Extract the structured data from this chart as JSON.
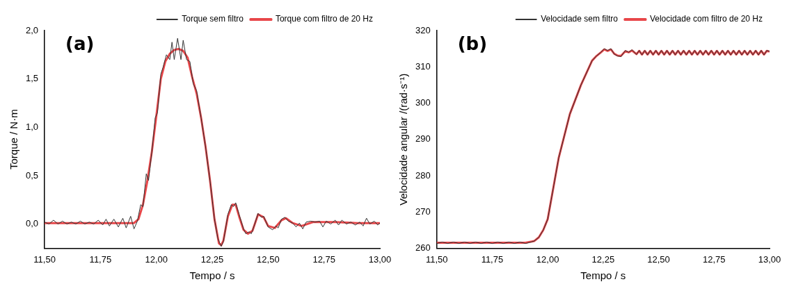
{
  "chart_data": [
    {
      "type": "line",
      "annotations": [
        "(a)"
      ],
      "xlabel": "Tempo / s",
      "ylabel": "Torque / N·m",
      "xlim": [
        11.5,
        13.0
      ],
      "ylim": [
        -0.25,
        2.0
      ],
      "xticks": [
        {
          "value": 11.5,
          "label": "11,50"
        },
        {
          "value": 11.75,
          "label": "11,75"
        },
        {
          "value": 12.0,
          "label": "12,00"
        },
        {
          "value": 12.25,
          "label": "12,25"
        },
        {
          "value": 12.5,
          "label": "12,50"
        },
        {
          "value": 12.75,
          "label": "12,75"
        },
        {
          "value": 13.0,
          "label": "13,00"
        }
      ],
      "yticks": [
        {
          "value": 0,
          "label": "0,0"
        },
        {
          "value": 0.5,
          "label": "0,5"
        },
        {
          "value": 1.0,
          "label": "1,0"
        },
        {
          "value": 1.5,
          "label": "1,5"
        },
        {
          "value": 2.0,
          "label": "2,0"
        }
      ],
      "grid": false,
      "legend": "top right",
      "series": [
        {
          "name": "Torque sem filtro",
          "color": "#333333",
          "x": [
            11.5,
            11.52,
            11.54,
            11.56,
            11.58,
            11.6,
            11.62,
            11.64,
            11.66,
            11.68,
            11.7,
            11.72,
            11.74,
            11.76,
            11.775,
            11.79,
            11.81,
            11.83,
            11.85,
            11.865,
            11.885,
            11.9,
            11.915,
            11.93,
            11.94,
            11.955,
            11.965,
            11.98,
            11.995,
            12.005,
            12.02,
            12.03,
            12.045,
            12.06,
            12.07,
            12.08,
            12.095,
            12.11,
            12.12,
            12.135,
            12.15,
            12.165,
            12.18,
            12.2,
            12.22,
            12.24,
            12.26,
            12.275,
            12.29,
            12.3,
            12.32,
            12.335,
            12.345,
            12.355,
            12.37,
            12.39,
            12.4,
            12.415,
            12.425,
            12.44,
            12.455,
            12.47,
            12.48,
            12.5,
            12.52,
            12.535,
            12.545,
            12.56,
            12.575,
            12.59,
            12.61,
            12.625,
            12.64,
            12.655,
            12.67,
            12.69,
            12.71,
            12.73,
            12.745,
            12.76,
            12.78,
            12.8,
            12.815,
            12.83,
            12.85,
            12.87,
            12.89,
            12.91,
            12.925,
            12.94,
            12.955,
            12.975,
            12.99,
            13.0
          ],
          "values": [
            0.02,
            0.0,
            0.04,
            0.0,
            0.03,
            0.0,
            0.02,
            0.0,
            0.03,
            0.0,
            0.02,
            0.0,
            0.04,
            -0.01,
            0.05,
            -0.02,
            0.05,
            -0.03,
            0.06,
            -0.04,
            0.08,
            -0.05,
            0.03,
            0.2,
            0.18,
            0.52,
            0.45,
            0.75,
            1.1,
            1.15,
            1.55,
            1.62,
            1.75,
            1.7,
            1.88,
            1.7,
            1.92,
            1.7,
            1.9,
            1.7,
            1.68,
            1.45,
            1.38,
            1.1,
            0.8,
            0.45,
            0.05,
            -0.15,
            -0.23,
            -0.18,
            0.1,
            0.2,
            0.18,
            0.22,
            0.1,
            -0.05,
            -0.1,
            -0.08,
            -0.1,
            0.0,
            0.11,
            0.07,
            0.08,
            -0.03,
            -0.06,
            -0.02,
            -0.04,
            0.05,
            0.07,
            0.03,
            0.01,
            -0.03,
            0.01,
            -0.05,
            0.02,
            0.03,
            0.02,
            0.03,
            -0.03,
            0.03,
            0.0,
            0.04,
            -0.01,
            0.04,
            0.0,
            0.02,
            -0.01,
            0.02,
            -0.02,
            0.06,
            0.0,
            0.03,
            -0.01,
            0.01
          ]
        },
        {
          "name": "Torque com filtro de 20 Hz",
          "color": "#e8474a",
          "x": [
            11.5,
            11.6,
            11.7,
            11.8,
            11.9,
            11.92,
            11.94,
            11.96,
            11.98,
            12.0,
            12.02,
            12.04,
            12.06,
            12.08,
            12.1,
            12.12,
            12.14,
            12.16,
            12.18,
            12.2,
            12.22,
            12.24,
            12.26,
            12.28,
            12.29,
            12.3,
            12.32,
            12.34,
            12.355,
            12.37,
            12.39,
            12.41,
            12.43,
            12.455,
            12.48,
            12.5,
            12.53,
            12.56,
            12.58,
            12.61,
            12.65,
            12.7,
            12.8,
            12.9,
            13.0
          ],
          "values": [
            0.01,
            0.01,
            0.01,
            0.01,
            0.01,
            0.05,
            0.2,
            0.45,
            0.75,
            1.12,
            1.5,
            1.68,
            1.76,
            1.8,
            1.81,
            1.79,
            1.72,
            1.52,
            1.35,
            1.1,
            0.8,
            0.45,
            0.05,
            -0.2,
            -0.22,
            -0.17,
            0.08,
            0.2,
            0.2,
            0.08,
            -0.06,
            -0.1,
            -0.07,
            0.1,
            0.07,
            -0.02,
            -0.04,
            0.04,
            0.06,
            0.01,
            -0.02,
            0.02,
            0.02,
            0.01,
            0.01
          ]
        }
      ]
    },
    {
      "type": "line",
      "annotations": [
        "(b)"
      ],
      "xlabel": "Tempo / s",
      "ylabel": "Velocidade angular /(rad·s⁻¹)",
      "xlim": [
        11.5,
        13.0
      ],
      "ylim": [
        260,
        320
      ],
      "xticks": [
        {
          "value": 11.5,
          "label": "11,50"
        },
        {
          "value": 11.75,
          "label": "11,75"
        },
        {
          "value": 12.0,
          "label": "12,00"
        },
        {
          "value": 12.25,
          "label": "12,25"
        },
        {
          "value": 12.5,
          "label": "12,50"
        },
        {
          "value": 12.75,
          "label": "12,75"
        },
        {
          "value": 13.0,
          "label": "13,00"
        }
      ],
      "yticks": [
        260,
        270,
        280,
        290,
        300,
        310,
        320
      ],
      "grid": false,
      "legend": "top right",
      "series": [
        {
          "name": "Velocidade sem filtro",
          "color": "#333333",
          "x": [
            11.5,
            11.525,
            11.55,
            11.575,
            11.6,
            11.625,
            11.65,
            11.675,
            11.7,
            11.725,
            11.75,
            11.775,
            11.8,
            11.825,
            11.85,
            11.875,
            11.9,
            11.925,
            11.94,
            11.96,
            11.98,
            12.0,
            12.05,
            12.1,
            12.15,
            12.2,
            12.22,
            12.24,
            12.255,
            12.27,
            12.285,
            12.3,
            12.315,
            12.33,
            12.35,
            12.365,
            12.38,
            12.4,
            12.4125,
            12.425,
            12.4375,
            12.45,
            12.4625,
            12.475,
            12.4875,
            12.5,
            12.5125,
            12.525,
            12.5375,
            12.55,
            12.5625,
            12.575,
            12.5875,
            12.6,
            12.6125,
            12.625,
            12.6375,
            12.65,
            12.6625,
            12.675,
            12.6875,
            12.7,
            12.7125,
            12.725,
            12.7375,
            12.75,
            12.7625,
            12.775,
            12.7875,
            12.8,
            12.8125,
            12.825,
            12.8375,
            12.85,
            12.8625,
            12.875,
            12.8875,
            12.9,
            12.9125,
            12.925,
            12.9375,
            12.95,
            12.9625,
            12.975,
            12.9875,
            13.0
          ],
          "values": [
            261.3,
            261.7,
            261.3,
            261.7,
            261.3,
            261.7,
            261.3,
            261.7,
            261.3,
            261.7,
            261.3,
            261.7,
            261.3,
            261.7,
            261.3,
            261.7,
            261.3,
            261.7,
            262,
            263,
            265,
            268,
            285,
            297,
            305,
            311.7,
            313,
            314,
            315,
            314.5,
            315,
            313.5,
            313,
            312.8,
            314.5,
            314,
            314.7,
            313.4,
            314.5,
            313.3,
            314.5,
            313.3,
            314.5,
            313.3,
            314.5,
            313.3,
            314.5,
            313.3,
            314.5,
            313.3,
            314.5,
            313.3,
            314.5,
            313.3,
            314.5,
            313.3,
            314.5,
            313.3,
            314.5,
            313.3,
            314.5,
            313.3,
            314.5,
            313.3,
            314.5,
            313.3,
            314.5,
            313.3,
            314.5,
            313.3,
            314.5,
            313.3,
            314.5,
            313.3,
            314.5,
            313.3,
            314.5,
            313.3,
            314.5,
            313.3,
            314.5,
            313.3,
            314.5,
            313.3,
            314.5,
            314.3
          ]
        },
        {
          "name": "Velocidade com filtro de 20 Hz",
          "color": "#e8474a",
          "x": [
            11.5,
            11.6,
            11.7,
            11.8,
            11.9,
            11.94,
            11.96,
            11.98,
            12.0,
            12.05,
            12.1,
            12.15,
            12.2,
            12.22,
            12.24,
            12.255,
            12.27,
            12.285,
            12.3,
            12.315,
            12.33,
            12.35,
            12.365,
            12.38,
            12.4,
            12.4125,
            12.425,
            12.4375,
            12.45,
            12.4625,
            12.475,
            12.4875,
            12.5,
            12.5125,
            12.525,
            12.5375,
            12.55,
            12.5625,
            12.575,
            12.5875,
            12.6,
            12.6125,
            12.625,
            12.6375,
            12.65,
            12.6625,
            12.675,
            12.6875,
            12.7,
            12.7125,
            12.725,
            12.7375,
            12.75,
            12.7625,
            12.775,
            12.7875,
            12.8,
            12.8125,
            12.825,
            12.8375,
            12.85,
            12.8625,
            12.875,
            12.8875,
            12.9,
            12.9125,
            12.925,
            12.9375,
            12.95,
            12.9625,
            12.975,
            12.9875,
            13.0
          ],
          "values": [
            261.5,
            261.5,
            261.5,
            261.5,
            261.5,
            262,
            263,
            265,
            268,
            285,
            297,
            305,
            311.7,
            313,
            314,
            314.8,
            314.4,
            314.8,
            313.6,
            313.1,
            313,
            314.3,
            314,
            314.5,
            313.5,
            314.4,
            313.4,
            314.4,
            313.4,
            314.4,
            313.4,
            314.4,
            313.4,
            314.4,
            313.4,
            314.4,
            313.4,
            314.4,
            313.4,
            314.4,
            313.4,
            314.4,
            313.4,
            314.4,
            313.4,
            314.4,
            313.4,
            314.4,
            313.4,
            314.4,
            313.4,
            314.4,
            313.4,
            314.4,
            313.4,
            314.4,
            313.4,
            314.4,
            313.4,
            314.4,
            313.4,
            314.4,
            313.4,
            314.4,
            313.4,
            314.4,
            313.4,
            314.4,
            313.4,
            314.4,
            313.4,
            314.4,
            314.2
          ]
        }
      ]
    }
  ]
}
